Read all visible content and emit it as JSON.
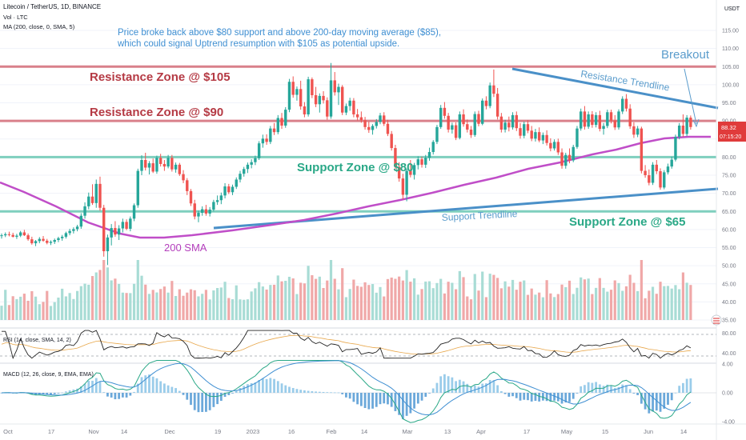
{
  "header": {
    "title": "Litecoin / TetherUS, 1D, BINANCE",
    "vol": "Vol · LTC",
    "ma": "MA (200, close, 0, SMA, 5)",
    "currency": "USDT"
  },
  "notes": {
    "main1": "Price broke back above $80 support and above 200-day moving average ($85),",
    "main2": "which could signal Uptrend resumption with $105 as potential upside.",
    "breakout": "Breakout",
    "res105": "Resistance Zone @ $105",
    "res90": "Resistance Zone @ $90",
    "sup80": "Support Zone @ $80",
    "sup65": "Support Zone @ $65",
    "sma": "200 SMA",
    "res_tl": "Resistance Trendline",
    "sup_tl": "Support Trendline"
  },
  "price_tag": {
    "value": "88.32",
    "countdown": "07:15:20"
  },
  "rsi_label": "RSI (14, close, SMA, 14, 2)",
  "macd_label": "MACD (12, 26, close, 9, EMA, EMA)",
  "colors": {
    "up": "#26a69a",
    "down": "#ef5350",
    "sma": "#c04ec8",
    "trend": "#4a90c8",
    "resistance": "#d9808a",
    "support": "#7fcfbe",
    "up_vol": "#a8dcd5",
    "down_vol": "#f0a8a8"
  },
  "chart_data": {
    "type": "candlestick",
    "price_axis": {
      "ylim": [
        35,
        120
      ],
      "ticks": [
        "115.00",
        "110.00",
        "105.00",
        "100.00",
        "95.00",
        "90.00",
        "85.00",
        "80.00",
        "75.00",
        "70.00",
        "65.00",
        "60.00",
        "55.00",
        "50.00",
        "45.00",
        "40.00",
        "35.00"
      ]
    },
    "x_ticks": [
      "Oct",
      "17",
      "Nov",
      "14",
      "Dec",
      "19",
      "2023",
      "16",
      "Feb",
      "14",
      "Mar",
      "13",
      "Apr",
      "17",
      "May",
      "15",
      "Jun",
      "14"
    ],
    "zones": {
      "resistance": [
        105,
        90
      ],
      "support": [
        80,
        65
      ]
    },
    "ohlc": [
      [
        58.2,
        58.9,
        57.5,
        58.4
      ],
      [
        58.4,
        59.2,
        57.9,
        58.7
      ],
      [
        58.7,
        59.4,
        58.1,
        58.5
      ],
      [
        58.5,
        59.1,
        57.8,
        58.0
      ],
      [
        58.0,
        58.8,
        57.4,
        58.3
      ],
      [
        58.3,
        59.6,
        57.9,
        59.2
      ],
      [
        59.2,
        59.9,
        58.2,
        58.4
      ],
      [
        58.4,
        58.9,
        56.9,
        57.3
      ],
      [
        57.3,
        58.0,
        55.8,
        56.2
      ],
      [
        56.2,
        57.1,
        55.4,
        56.8
      ],
      [
        56.8,
        57.9,
        56.2,
        57.4
      ],
      [
        57.4,
        58.2,
        56.6,
        56.9
      ],
      [
        56.9,
        57.4,
        55.9,
        56.3
      ],
      [
        56.3,
        57.0,
        55.7,
        56.6
      ],
      [
        56.6,
        57.5,
        56.0,
        57.1
      ],
      [
        57.1,
        58.0,
        56.5,
        57.6
      ],
      [
        57.6,
        58.5,
        56.9,
        58.0
      ],
      [
        58.0,
        59.4,
        57.5,
        59.0
      ],
      [
        59.0,
        60.2,
        58.4,
        59.6
      ],
      [
        59.6,
        60.6,
        58.9,
        60.1
      ],
      [
        60.1,
        61.3,
        59.5,
        60.8
      ],
      [
        60.8,
        64.5,
        60.2,
        63.8
      ],
      [
        63.8,
        67.5,
        63.0,
        66.4
      ],
      [
        66.4,
        70.2,
        65.6,
        69.1
      ],
      [
        69.1,
        72.5,
        66.8,
        67.3
      ],
      [
        67.3,
        73.8,
        66.0,
        72.6
      ],
      [
        72.6,
        74.6,
        65.2,
        66.0
      ],
      [
        66.0,
        66.8,
        52.5,
        54.0
      ],
      [
        54.0,
        58.6,
        50.2,
        57.8
      ],
      [
        57.8,
        61.5,
        55.6,
        60.4
      ],
      [
        60.4,
        62.3,
        58.0,
        58.6
      ],
      [
        58.6,
        61.2,
        57.1,
        60.3
      ],
      [
        60.3,
        63.0,
        59.2,
        62.1
      ],
      [
        62.1,
        62.8,
        59.8,
        60.2
      ],
      [
        60.2,
        63.6,
        59.5,
        63.0
      ],
      [
        63.0,
        67.2,
        62.3,
        66.7
      ],
      [
        66.7,
        76.8,
        66.0,
        76.2
      ],
      [
        76.2,
        80.5,
        75.0,
        79.2
      ],
      [
        79.2,
        81.2,
        76.3,
        77.1
      ],
      [
        77.1,
        78.9,
        75.2,
        78.3
      ],
      [
        78.3,
        79.6,
        75.6,
        76.0
      ],
      [
        76.0,
        80.4,
        75.4,
        79.8
      ],
      [
        79.8,
        80.9,
        77.4,
        78.1
      ],
      [
        78.1,
        79.2,
        76.2,
        77.4
      ],
      [
        77.4,
        80.6,
        76.9,
        79.8
      ],
      [
        79.8,
        80.6,
        76.0,
        76.6
      ],
      [
        76.6,
        78.5,
        75.7,
        77.9
      ],
      [
        77.9,
        78.4,
        74.8,
        75.3
      ],
      [
        75.3,
        76.4,
        72.8,
        73.6
      ],
      [
        73.6,
        74.2,
        69.5,
        70.6
      ],
      [
        70.6,
        71.2,
        66.5,
        67.2
      ],
      [
        67.2,
        68.2,
        62.8,
        63.6
      ],
      [
        63.6,
        65.2,
        62.0,
        64.6
      ],
      [
        64.6,
        66.4,
        63.8,
        65.6
      ],
      [
        65.6,
        66.8,
        63.8,
        64.4
      ],
      [
        64.4,
        66.2,
        63.6,
        65.5
      ],
      [
        65.5,
        68.2,
        65.0,
        67.6
      ],
      [
        67.6,
        69.4,
        66.8,
        68.1
      ],
      [
        68.1,
        70.2,
        67.0,
        69.4
      ],
      [
        69.4,
        72.8,
        68.6,
        71.9
      ],
      [
        71.9,
        72.6,
        69.8,
        70.3
      ],
      [
        70.3,
        72.4,
        69.5,
        71.8
      ],
      [
        71.8,
        74.4,
        71.2,
        73.8
      ],
      [
        73.8,
        76.2,
        73.0,
        75.4
      ],
      [
        75.4,
        77.3,
        74.6,
        76.7
      ],
      [
        76.7,
        78.5,
        75.6,
        77.9
      ],
      [
        77.9,
        79.4,
        76.9,
        78.6
      ],
      [
        78.6,
        80.4,
        77.8,
        79.7
      ],
      [
        79.7,
        84.4,
        79.2,
        83.8
      ],
      [
        83.8,
        86.2,
        82.6,
        85.1
      ],
      [
        85.1,
        86.3,
        83.4,
        84.2
      ],
      [
        84.2,
        88.6,
        83.6,
        87.9
      ],
      [
        87.9,
        89.4,
        86.1,
        86.9
      ],
      [
        86.9,
        91.6,
        86.3,
        90.8
      ],
      [
        90.8,
        92.2,
        87.8,
        88.7
      ],
      [
        88.7,
        93.8,
        88.1,
        93.1
      ],
      [
        93.1,
        101.6,
        92.4,
        100.8
      ],
      [
        100.8,
        102.3,
        96.4,
        97.2
      ],
      [
        97.2,
        99.5,
        95.6,
        98.8
      ],
      [
        98.8,
        101.1,
        93.1,
        94.0
      ],
      [
        94.0,
        95.2,
        91.0,
        91.8
      ],
      [
        91.8,
        102.2,
        91.2,
        101.5
      ],
      [
        101.5,
        102.0,
        96.3,
        97.1
      ],
      [
        97.1,
        99.4,
        93.8,
        94.6
      ],
      [
        94.6,
        97.6,
        92.3,
        96.9
      ],
      [
        96.9,
        98.2,
        94.8,
        95.7
      ],
      [
        95.7,
        96.5,
        90.3,
        91.2
      ],
      [
        91.2,
        106.0,
        90.6,
        101.2
      ],
      [
        101.2,
        103.5,
        97.0,
        97.9
      ],
      [
        97.9,
        100.3,
        94.4,
        99.4
      ],
      [
        99.4,
        99.9,
        91.6,
        92.3
      ],
      [
        92.3,
        94.8,
        91.6,
        94.1
      ],
      [
        94.1,
        96.4,
        92.8,
        95.6
      ],
      [
        95.6,
        96.3,
        91.0,
        91.8
      ],
      [
        91.8,
        93.3,
        90.1,
        91.0
      ],
      [
        91.0,
        92.6,
        89.5,
        90.2
      ],
      [
        90.2,
        91.1,
        87.6,
        88.3
      ],
      [
        88.3,
        89.8,
        86.7,
        87.5
      ],
      [
        87.5,
        89.1,
        86.2,
        88.6
      ],
      [
        88.6,
        90.5,
        87.9,
        89.7
      ],
      [
        89.7,
        92.2,
        89.1,
        91.5
      ],
      [
        91.5,
        92.4,
        88.6,
        89.2
      ],
      [
        89.2,
        90.3,
        85.8,
        86.4
      ],
      [
        86.4,
        87.2,
        81.8,
        82.5
      ],
      [
        82.5,
        83.4,
        76.6,
        77.3
      ],
      [
        77.3,
        78.6,
        73.2,
        74.1
      ],
      [
        74.1,
        75.4,
        68.3,
        69.6
      ],
      [
        69.6,
        76.8,
        67.8,
        76.2
      ],
      [
        76.2,
        79.2,
        74.4,
        75.1
      ],
      [
        75.1,
        78.4,
        73.8,
        77.8
      ],
      [
        77.8,
        80.2,
        76.6,
        79.4
      ],
      [
        79.4,
        80.1,
        77.1,
        77.9
      ],
      [
        77.9,
        80.6,
        77.0,
        79.8
      ],
      [
        79.8,
        82.6,
        79.0,
        81.4
      ],
      [
        81.4,
        84.7,
        80.7,
        84.2
      ],
      [
        84.2,
        88.9,
        83.6,
        88.3
      ],
      [
        88.3,
        94.4,
        87.8,
        93.6
      ],
      [
        93.6,
        95.2,
        90.6,
        91.4
      ],
      [
        91.4,
        92.2,
        86.8,
        87.6
      ],
      [
        87.6,
        89.5,
        86.5,
        88.8
      ],
      [
        88.8,
        89.6,
        84.7,
        85.3
      ],
      [
        85.3,
        92.6,
        84.9,
        91.8
      ],
      [
        91.8,
        93.2,
        88.4,
        89.1
      ],
      [
        89.1,
        90.4,
        86.8,
        87.6
      ],
      [
        87.6,
        88.6,
        85.3,
        86.1
      ],
      [
        86.1,
        92.6,
        85.6,
        91.9
      ],
      [
        91.9,
        92.8,
        88.5,
        89.2
      ],
      [
        89.2,
        96.2,
        88.8,
        95.6
      ],
      [
        95.6,
        96.8,
        93.2,
        94.1
      ],
      [
        94.1,
        100.6,
        93.5,
        99.8
      ],
      [
        99.8,
        104.2,
        96.6,
        97.5
      ],
      [
        97.5,
        99.1,
        90.4,
        91.2
      ],
      [
        91.2,
        92.2,
        86.8,
        87.6
      ],
      [
        87.6,
        90.3,
        86.8,
        89.5
      ],
      [
        89.5,
        91.2,
        87.1,
        88.2
      ],
      [
        88.2,
        92.4,
        87.6,
        91.6
      ],
      [
        91.6,
        92.6,
        87.2,
        88.0
      ],
      [
        88.0,
        89.4,
        85.1,
        85.9
      ],
      [
        85.9,
        89.8,
        85.2,
        89.1
      ],
      [
        89.1,
        90.2,
        86.6,
        87.3
      ],
      [
        87.3,
        88.6,
        84.4,
        85.1
      ],
      [
        85.1,
        87.8,
        84.3,
        86.9
      ],
      [
        86.9,
        88.2,
        84.1,
        84.6
      ],
      [
        84.6,
        86.8,
        83.6,
        86.1
      ],
      [
        86.1,
        87.4,
        83.2,
        83.9
      ],
      [
        83.9,
        85.2,
        81.6,
        82.4
      ],
      [
        82.4,
        84.9,
        81.8,
        84.2
      ],
      [
        84.2,
        85.1,
        80.6,
        81.3
      ],
      [
        81.3,
        82.4,
        76.8,
        77.6
      ],
      [
        77.6,
        81.2,
        76.8,
        80.6
      ],
      [
        80.6,
        82.4,
        78.3,
        79.1
      ],
      [
        79.1,
        83.4,
        78.6,
        82.8
      ],
      [
        82.8,
        88.6,
        82.3,
        87.9
      ],
      [
        87.9,
        93.4,
        87.3,
        92.6
      ],
      [
        92.6,
        94.1,
        87.6,
        88.4
      ],
      [
        88.4,
        92.6,
        87.8,
        91.8
      ],
      [
        91.8,
        92.7,
        88.1,
        88.9
      ],
      [
        88.9,
        92.4,
        88.2,
        91.6
      ],
      [
        91.6,
        92.8,
        87.1,
        87.8
      ],
      [
        87.8,
        89.4,
        86.2,
        88.6
      ],
      [
        88.6,
        93.1,
        88.0,
        92.4
      ],
      [
        92.4,
        93.1,
        89.3,
        90.1
      ],
      [
        90.1,
        91.6,
        87.5,
        88.2
      ],
      [
        88.2,
        93.2,
        87.6,
        92.6
      ],
      [
        92.6,
        96.8,
        91.9,
        96.1
      ],
      [
        96.1,
        97.4,
        92.6,
        93.4
      ],
      [
        93.4,
        94.6,
        87.8,
        88.5
      ],
      [
        88.5,
        89.6,
        85.3,
        86.2
      ],
      [
        86.2,
        88.6,
        85.5,
        87.9
      ],
      [
        87.9,
        88.4,
        75.5,
        76.2
      ],
      [
        76.2,
        77.8,
        74.3,
        75.0
      ],
      [
        75.0,
        76.6,
        72.2,
        72.9
      ],
      [
        72.9,
        78.6,
        72.3,
        77.9
      ],
      [
        77.9,
        79.2,
        75.3,
        76.1
      ],
      [
        76.1,
        76.9,
        71.0,
        71.6
      ],
      [
        71.6,
        76.4,
        71.1,
        75.8
      ],
      [
        75.8,
        78.2,
        75.2,
        77.4
      ],
      [
        77.4,
        80.1,
        76.8,
        79.3
      ],
      [
        79.3,
        86.2,
        78.8,
        85.6
      ],
      [
        85.6,
        89.4,
        84.9,
        88.7
      ],
      [
        88.7,
        91.8,
        85.6,
        86.4
      ],
      [
        86.4,
        91.6,
        85.8,
        90.9
      ],
      [
        90.9,
        91.5,
        87.6,
        88.3
      ]
    ]
  }
}
